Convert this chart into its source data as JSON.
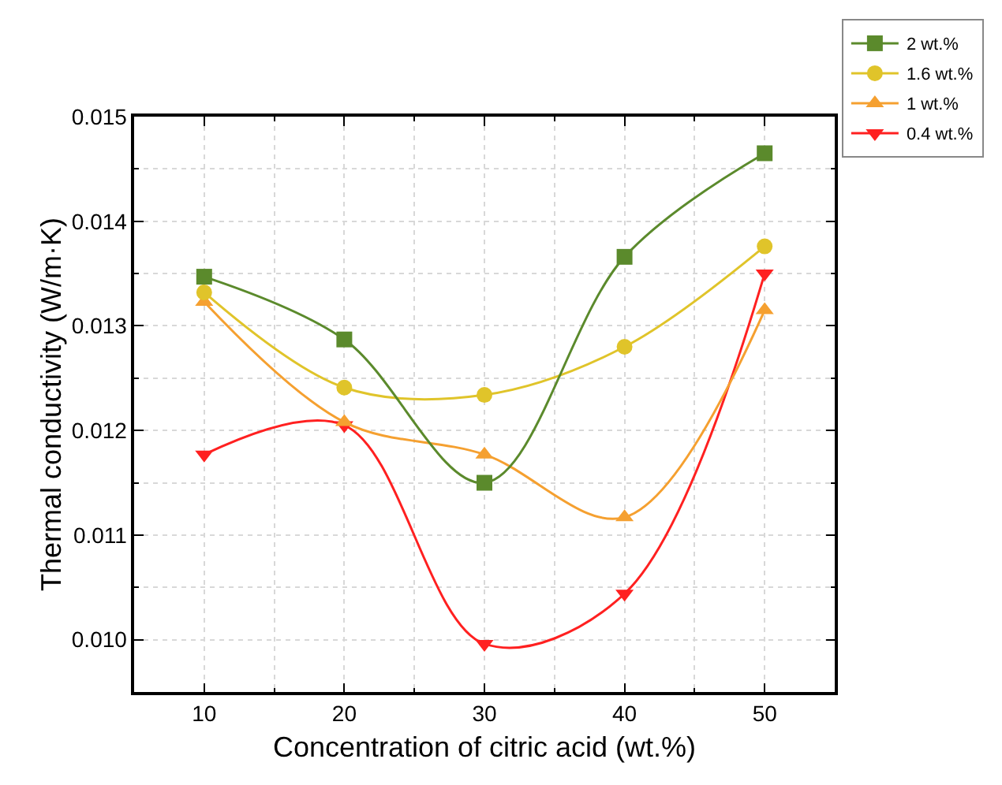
{
  "chart_data": {
    "type": "line",
    "xlabel": "Concentration of citric acid (wt.%)",
    "ylabel": "Thermal conductivity (W/m·K)",
    "x": [
      10,
      20,
      30,
      40,
      50
    ],
    "series": [
      {
        "name": "2 wt.%",
        "color": "#5b8a2c",
        "marker": "square",
        "values": [
          0.01347,
          0.01287,
          0.0115,
          0.01366,
          0.01465
        ]
      },
      {
        "name": "1.6 wt.%",
        "color": "#e0c42a",
        "marker": "circle",
        "values": [
          0.01332,
          0.01241,
          0.01234,
          0.0128,
          0.01376
        ]
      },
      {
        "name": "1 wt.%",
        "color": "#f5a030",
        "marker": "triangle",
        "values": [
          0.01323,
          0.01208,
          0.01177,
          0.01117,
          0.01315
        ]
      },
      {
        "name": "0.4 wt.%",
        "color": "#ff2020",
        "marker": "triangle-down",
        "values": [
          0.01177,
          0.01205,
          0.00996,
          0.01044,
          0.0135
        ]
      }
    ],
    "xlim": [
      5,
      55
    ],
    "xticks": [
      10,
      20,
      30,
      40,
      50
    ],
    "ylim": [
      0.0095,
      0.015
    ],
    "yticks": [
      {
        "value": 0.01,
        "label": "0.010"
      },
      {
        "value": 0.011,
        "label": "0.011"
      },
      {
        "value": 0.012,
        "label": "0.012"
      },
      {
        "value": 0.013,
        "label": "0.013"
      },
      {
        "value": 0.014,
        "label": "0.014"
      },
      {
        "value": 0.015,
        "label": "0.015"
      }
    ],
    "grid": true,
    "legend": "top right",
    "line_style": "solid"
  }
}
